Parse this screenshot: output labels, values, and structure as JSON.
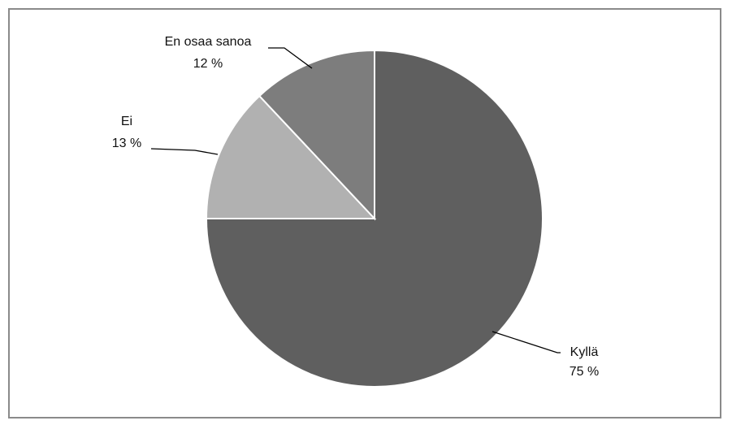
{
  "chart_data": {
    "type": "pie",
    "title": "",
    "slices": [
      {
        "label": "Kyllä",
        "value": 75,
        "value_label": "75 %",
        "color": "#5f5f5f"
      },
      {
        "label": "Ei",
        "value": 13,
        "value_label": "13 %",
        "color": "#b1b1b1"
      },
      {
        "label": "En osaa sanoa",
        "value": 12,
        "value_label": "12 %",
        "color": "#7d7d7d"
      }
    ],
    "start_angle_deg": 0,
    "direction": "clockwise-from-top",
    "legend": "none",
    "border_color": "#8a8a8a"
  }
}
